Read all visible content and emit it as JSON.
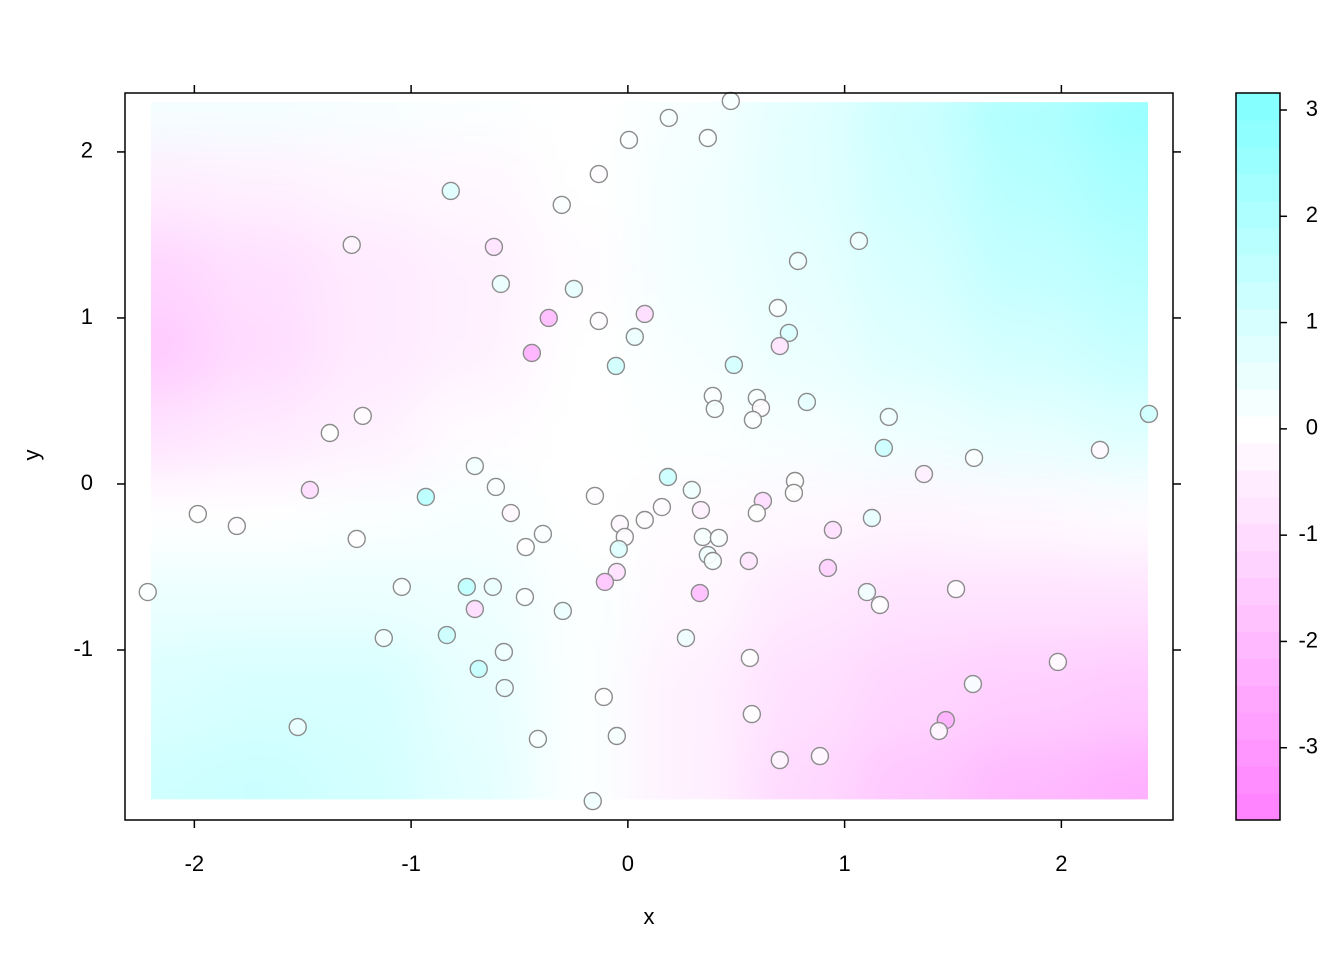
{
  "chart_data": {
    "type": "contour",
    "x_label": "x",
    "y_label": "y",
    "xlim": [
      -2.32,
      2.515
    ],
    "ylim": [
      -2.024,
      2.355
    ],
    "xticks": [
      -2,
      -1,
      0,
      1,
      2
    ],
    "yticks": [
      -1,
      0,
      1,
      2
    ],
    "zlim": [
      -3.68,
      3.16
    ],
    "zticks": [
      -3,
      -2,
      -1,
      0,
      1,
      2,
      3
    ],
    "low_color": "#ff80ff",
    "high_color": "#80ffff",
    "surface": {
      "x": [
        -2.2,
        -1.7,
        -1.2,
        -0.7,
        -0.2,
        0.3,
        0.8,
        1.3,
        1.8,
        2.4
      ],
      "y": [
        2.3,
        1.8,
        1.3,
        0.8,
        0.3,
        -0.2,
        -0.7,
        -1.2,
        -1.9
      ],
      "z": [
        [
          0.3,
          0.3,
          0.2,
          0.1,
          0,
          0.2,
          0.7,
          1.3,
          2.0,
          2.6
        ],
        [
          -0.5,
          -0.4,
          -0.3,
          -0.2,
          0,
          0.3,
          0.7,
          1.2,
          1.8,
          2.2
        ],
        [
          -1.2,
          -0.9,
          -0.6,
          -0.4,
          -0.1,
          0.3,
          0.6,
          1.0,
          1.5,
          1.8
        ],
        [
          -1.5,
          -1.0,
          -0.6,
          -0.4,
          0,
          0.2,
          0.5,
          0.8,
          1.1,
          1.4
        ],
        [
          -0.8,
          -0.6,
          -0.4,
          -0.1,
          0,
          0.1,
          0.2,
          0.4,
          0.6,
          0.8
        ],
        [
          0,
          0,
          0.1,
          0.2,
          0,
          -0.1,
          -0.2,
          -0.3,
          -0.2,
          -0.1
        ],
        [
          0.5,
          0.5,
          0.5,
          0.4,
          0.1,
          -0.2,
          -0.6,
          -0.8,
          -0.8,
          -0.8
        ],
        [
          0.9,
          1.0,
          1.0,
          0.6,
          0.1,
          -0.4,
          -0.9,
          -1.2,
          -1.4,
          -1.5
        ],
        [
          1.2,
          1.3,
          1.1,
          0.7,
          0.1,
          -0.4,
          -1.1,
          -1.6,
          -2.0,
          -2.3
        ]
      ]
    },
    "points": {
      "x": [
        0.475,
        0.189,
        0.369,
        0.005,
        -0.134,
        -0.817,
        -0.305,
        1.066,
        -1.274,
        -0.618,
        0.785,
        -0.586,
        -0.249,
        -0.365,
        -0.134,
        0.078,
        0.692,
        0.032,
        0.743,
        0.701,
        -0.443,
        -0.055,
        0.489,
        0.392,
        0.401,
        0.595,
        0.614,
        0.577,
        0.826,
        1.204,
        -1.223,
        -1.375,
        1.181,
        2.404,
        2.178,
        1.366,
        1.597,
        -0.706,
        -1.467,
        -0.609,
        -0.932,
        0.185,
        0.295,
        0.771,
        0.766,
        -0.152,
        0.337,
        0.623,
        0.595,
        -1.984,
        -1.804,
        -0.54,
        0.157,
        0.078,
        -0.037,
        -0.392,
        0.946,
        1.126,
        -1.251,
        -0.014,
        0.346,
        0.42,
        -0.471,
        -0.042,
        0.369,
        0.392,
        0.558,
        0.923,
        -0.051,
        -0.106,
        -1.043,
        -0.743,
        -0.623,
        -2.215,
        -0.3,
        -0.475,
        0.332,
        1.103,
        1.514,
        1.163,
        -0.706,
        -0.835,
        -1.126,
        0.268,
        -0.572,
        0.563,
        -0.688,
        1.984,
        -0.568,
        1.592,
        -0.111,
        0.572,
        -1.523,
        1.467,
        1.435,
        -0.051,
        -0.415,
        0.701,
        0.886,
        -0.162
      ],
      "y": [
        2.307,
        2.205,
        2.084,
        2.072,
        1.867,
        1.765,
        1.681,
        1.464,
        1.44,
        1.428,
        1.343,
        1.205,
        1.175,
        1.0,
        0.982,
        1.024,
        1.06,
        0.886,
        0.91,
        0.831,
        0.789,
        0.711,
        0.717,
        0.53,
        0.452,
        0.518,
        0.458,
        0.386,
        0.494,
        0.404,
        0.41,
        0.307,
        0.217,
        0.422,
        0.205,
        0.06,
        0.157,
        0.108,
        -0.036,
        -0.018,
        -0.078,
        0.042,
        -0.036,
        0.018,
        -0.054,
        -0.072,
        -0.157,
        -0.102,
        -0.175,
        -0.181,
        -0.253,
        -0.175,
        -0.139,
        -0.217,
        -0.241,
        -0.301,
        -0.277,
        -0.205,
        -0.331,
        -0.319,
        -0.319,
        -0.325,
        -0.38,
        -0.392,
        -0.428,
        -0.464,
        -0.464,
        -0.506,
        -0.53,
        -0.59,
        -0.62,
        -0.62,
        -0.62,
        -0.651,
        -0.765,
        -0.681,
        -0.657,
        -0.651,
        -0.633,
        -0.729,
        -0.753,
        -0.91,
        -0.928,
        -0.928,
        -1.012,
        -1.048,
        -1.114,
        -1.072,
        -1.229,
        -1.205,
        -1.283,
        -1.386,
        -1.464,
        -1.422,
        -1.488,
        -1.518,
        -1.536,
        -1.663,
        -1.639,
        -1.91
      ],
      "z": [
        0.2,
        0.2,
        0.1,
        0.1,
        -0.1,
        0.8,
        0.1,
        0.4,
        -0.3,
        -0.8,
        0.4,
        0.5,
        0.6,
        -2.0,
        -0.1,
        -1.0,
        0.1,
        0.5,
        0.9,
        -0.8,
        -2.3,
        1.2,
        1.1,
        0.1,
        0.2,
        0.2,
        -0.1,
        0.1,
        0.6,
        0.4,
        -0.1,
        0,
        1.3,
        1.2,
        -0.2,
        -0.5,
        0.1,
        0.3,
        -1.0,
        0.1,
        1.8,
        1.3,
        0.4,
        0,
        0,
        -0.1,
        -0.4,
        -1.0,
        0,
        0,
        -0.1,
        -0.2,
        -0.1,
        -0.1,
        -0.2,
        0.1,
        -0.9,
        0.6,
        0,
        -0.1,
        0.2,
        0.1,
        0,
        0.8,
        0.4,
        0.2,
        -0.7,
        -1.3,
        -0.9,
        -1.7,
        0.2,
        1.6,
        0.5,
        0.1,
        0.5,
        0.1,
        -1.9,
        0.4,
        -0.1,
        0,
        -1.0,
        1.3,
        0.3,
        0.4,
        0.4,
        0,
        1.4,
        -0.1,
        0.5,
        0.2,
        0,
        0,
        0.5,
        -2.3,
        -0.2,
        0.2,
        0.2,
        -0.3,
        -0.2,
        0.4
      ]
    }
  }
}
